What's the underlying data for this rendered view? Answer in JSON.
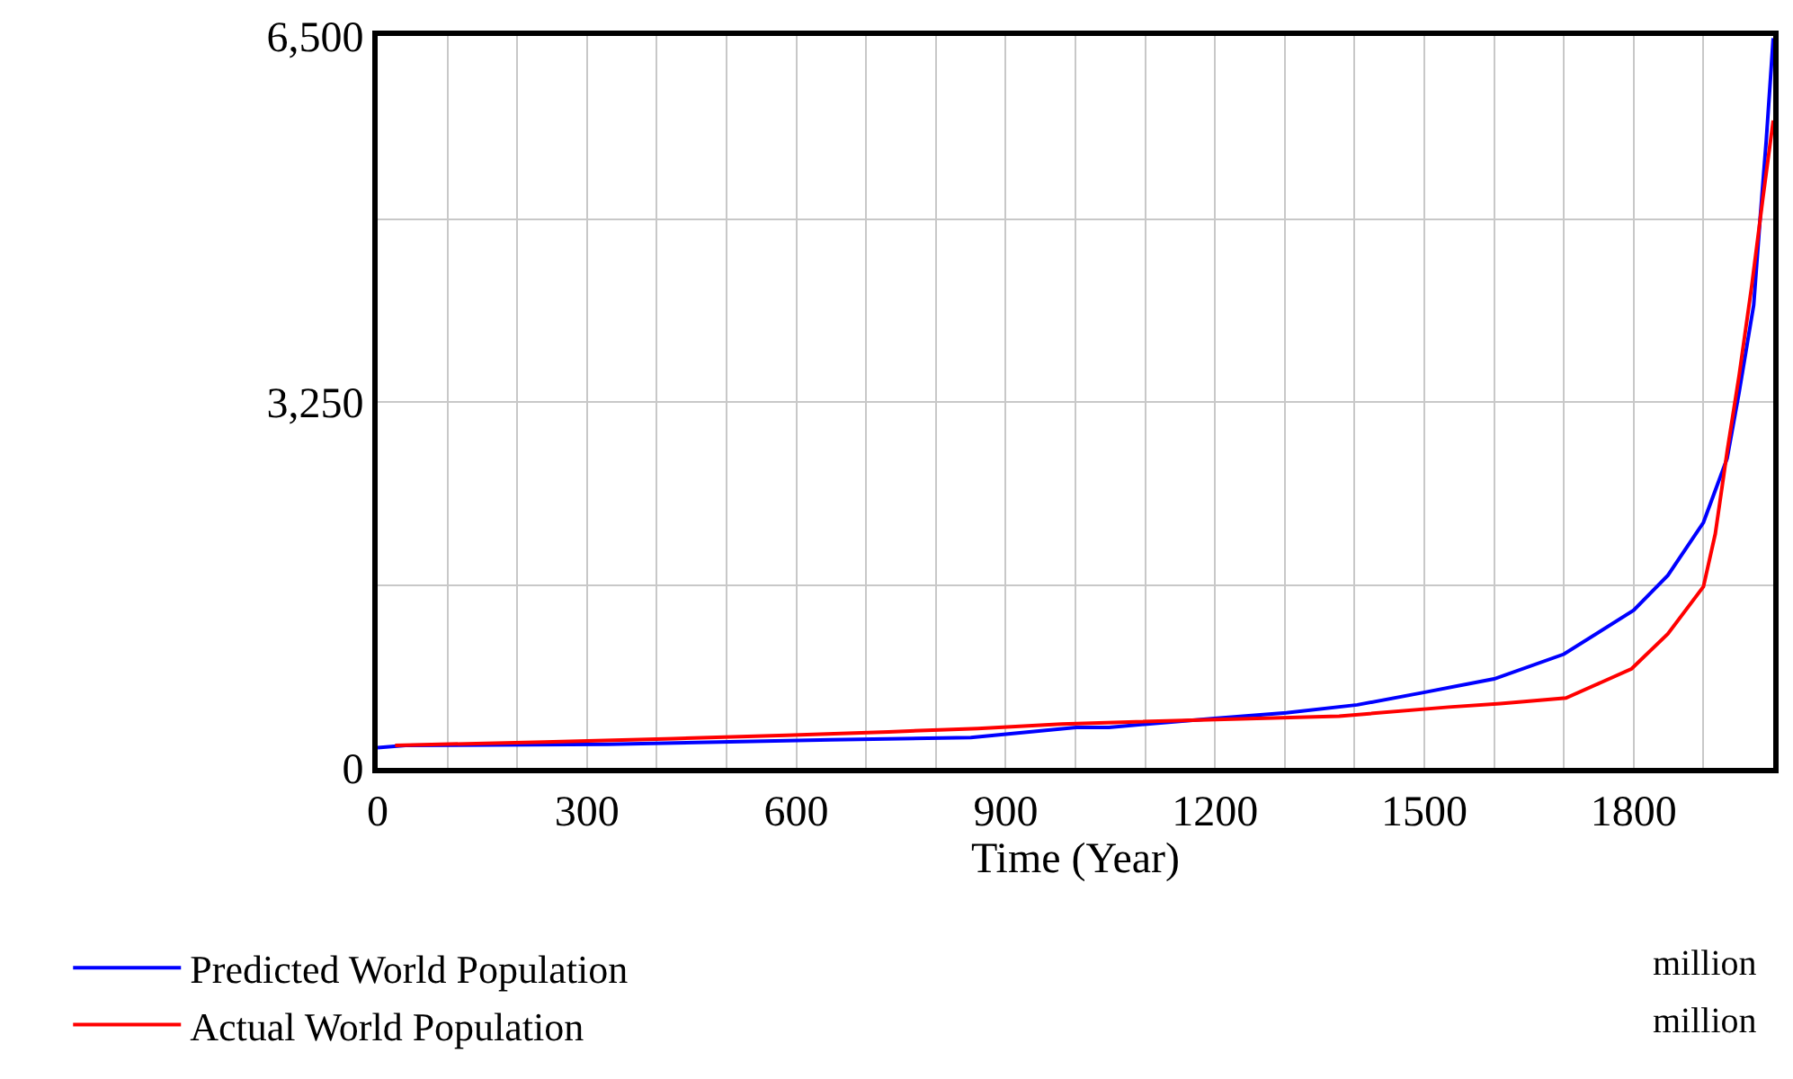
{
  "chart_data": {
    "type": "line",
    "xlabel": "Time (Year)",
    "xlim": [
      0,
      2000
    ],
    "xticks": [
      0,
      300,
      600,
      900,
      1200,
      1500,
      1800,
      {
        "value": 100,
        "label": null
      },
      {
        "value": 200,
        "label": null
      },
      {
        "value": 400,
        "label": null
      },
      {
        "value": 500,
        "label": null
      },
      {
        "value": 700,
        "label": null
      },
      {
        "value": 800,
        "label": null
      },
      {
        "value": 1000,
        "label": null
      },
      {
        "value": 1100,
        "label": null
      },
      {
        "value": 1300,
        "label": null
      },
      {
        "value": 1400,
        "label": null
      },
      {
        "value": 1600,
        "label": null
      },
      {
        "value": 1700,
        "label": null
      },
      {
        "value": 1900,
        "label": null
      }
    ],
    "ylim": [
      0,
      6500
    ],
    "yticks": [
      {
        "value": 0,
        "label": "0"
      },
      {
        "value": 1625,
        "label": null
      },
      {
        "value": 3250,
        "label": "3,250"
      },
      {
        "value": 4875,
        "label": null
      },
      {
        "value": 6500,
        "label": "6,500"
      }
    ],
    "grid": true,
    "legend": "bottom",
    "annotations": [
      "million",
      "million"
    ],
    "series": [
      {
        "name": "Predicted World Population",
        "color": "#0000ff",
        "x": [
          0,
          40,
          330,
          650,
          850,
          1001,
          1048,
          1199,
          1302,
          1404,
          1499,
          1600,
          1700,
          1800,
          1849,
          1900,
          1934,
          1951,
          1972,
          1981,
          1990,
          2000
        ],
        "values": [
          180,
          200,
          210,
          250,
          270,
          360,
          360,
          440,
          490,
          560,
          670,
          790,
          1010,
          1400,
          1710,
          2180,
          2750,
          3330,
          4110,
          4860,
          5570,
          6480
        ]
      },
      {
        "name": "Actual World Population",
        "color": "#ff0000",
        "x": [
          25,
          239,
          424,
          586,
          732,
          860,
          980,
          1087,
          1378,
          1535,
          1609,
          1703,
          1797,
          1849,
          1900,
          1917,
          1934,
          1951,
          1969,
          1985,
          2000
        ],
        "values": [
          200,
          230,
          260,
          290,
          320,
          350,
          390,
          410,
          460,
          540,
          570,
          620,
          880,
          1190,
          1610,
          2080,
          2810,
          3480,
          4270,
          5050,
          5750
        ]
      }
    ]
  }
}
